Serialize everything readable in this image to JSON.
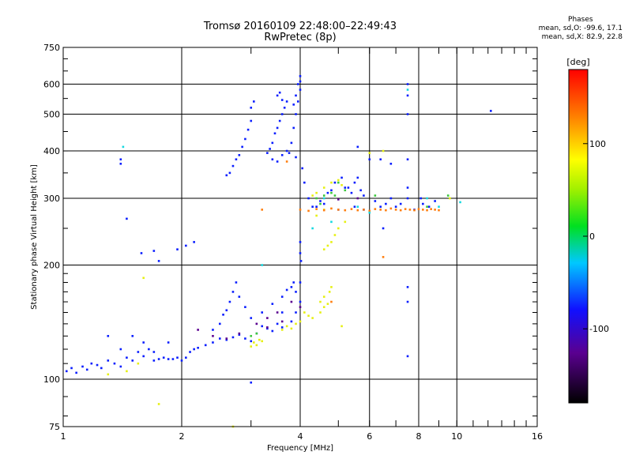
{
  "chart_data": {
    "type": "scatter",
    "title": "Tromsø 20160109 22:48:00–22:49:43",
    "subtitle": "RwPretec (8p)",
    "xlabel": "Frequency [MHz]",
    "ylabel": "Stationary phase Virtual Height [km]",
    "x_scale": "log",
    "y_scale": "log",
    "xlim": [
      1,
      16
    ],
    "ylim": [
      75,
      750
    ],
    "x_ticks": [
      1,
      2,
      4,
      6,
      8,
      10,
      16
    ],
    "y_ticks": [
      75,
      100,
      200,
      300,
      400,
      500,
      600,
      750
    ],
    "grid": true,
    "colorbar": {
      "label": "[deg]",
      "range": [
        -180,
        180
      ],
      "ticks": [
        100,
        0,
        -100
      ]
    },
    "stats": {
      "header": "Phases",
      "line1": "mean, sd,O:  -99.6, 17.1",
      "line2": "mean, sd,X:  82.9, 22.8"
    },
    "series": [
      {
        "color": "#0a1eff",
        "points": [
          [
            1.02,
            105
          ],
          [
            1.05,
            107
          ],
          [
            1.08,
            104
          ],
          [
            1.12,
            108
          ],
          [
            1.15,
            106
          ],
          [
            1.18,
            110
          ],
          [
            1.22,
            109
          ],
          [
            1.25,
            107
          ],
          [
            1.3,
            112
          ],
          [
            1.35,
            110
          ],
          [
            1.4,
            108
          ],
          [
            1.45,
            114
          ],
          [
            1.5,
            112
          ],
          [
            1.55,
            118
          ],
          [
            1.6,
            115
          ],
          [
            1.65,
            120
          ],
          [
            1.7,
            112
          ],
          [
            1.75,
            113
          ],
          [
            1.8,
            114
          ],
          [
            1.85,
            113
          ],
          [
            1.9,
            113
          ],
          [
            1.95,
            114
          ],
          [
            2.0,
            112
          ],
          [
            2.05,
            114
          ],
          [
            2.1,
            118
          ],
          [
            2.15,
            120
          ],
          [
            2.2,
            121
          ],
          [
            2.3,
            123
          ],
          [
            2.4,
            125
          ],
          [
            2.5,
            128
          ],
          [
            2.6,
            127
          ],
          [
            2.7,
            129
          ],
          [
            2.8,
            131
          ],
          [
            2.9,
            128
          ],
          [
            3.0,
            126
          ],
          [
            3.1,
            132
          ],
          [
            3.2,
            138
          ],
          [
            3.3,
            136
          ],
          [
            3.4,
            134
          ],
          [
            3.5,
            140
          ],
          [
            3.6,
            137
          ],
          [
            3.8,
            142
          ],
          [
            3.9,
            150
          ],
          [
            4.0,
            160
          ],
          [
            4.0,
            180
          ],
          [
            4.02,
            205
          ],
          [
            4.0,
            215
          ],
          [
            4.0,
            230
          ],
          [
            2.4,
            135
          ],
          [
            2.5,
            140
          ],
          [
            2.55,
            148
          ],
          [
            2.6,
            152
          ],
          [
            2.65,
            160
          ],
          [
            2.7,
            170
          ],
          [
            2.75,
            180
          ],
          [
            2.8,
            165
          ],
          [
            2.9,
            155
          ],
          [
            3.0,
            145
          ],
          [
            3.2,
            150
          ],
          [
            3.4,
            158
          ],
          [
            3.6,
            165
          ],
          [
            3.7,
            172
          ],
          [
            3.8,
            175
          ],
          [
            3.85,
            180
          ],
          [
            3.9,
            170
          ],
          [
            1.3,
            130
          ],
          [
            1.4,
            120
          ],
          [
            1.5,
            130
          ],
          [
            1.6,
            125
          ],
          [
            1.7,
            118
          ],
          [
            1.85,
            125
          ],
          [
            1.95,
            220
          ],
          [
            2.05,
            225
          ],
          [
            2.15,
            230
          ],
          [
            1.58,
            215
          ],
          [
            1.7,
            218
          ],
          [
            1.75,
            205
          ],
          [
            1.45,
            265
          ],
          [
            1.4,
            370
          ],
          [
            1.4,
            380
          ],
          [
            2.6,
            345
          ],
          [
            2.65,
            350
          ],
          [
            2.7,
            365
          ],
          [
            2.75,
            380
          ],
          [
            2.8,
            390
          ],
          [
            2.85,
            410
          ],
          [
            2.9,
            430
          ],
          [
            2.95,
            455
          ],
          [
            3.0,
            480
          ],
          [
            3.0,
            520
          ],
          [
            3.05,
            540
          ],
          [
            3.3,
            395
          ],
          [
            3.35,
            405
          ],
          [
            3.4,
            420
          ],
          [
            3.45,
            445
          ],
          [
            3.5,
            460
          ],
          [
            3.55,
            480
          ],
          [
            3.6,
            500
          ],
          [
            3.65,
            520
          ],
          [
            3.7,
            540
          ],
          [
            3.5,
            560
          ],
          [
            3.55,
            570
          ],
          [
            3.6,
            545
          ],
          [
            3.7,
            400
          ],
          [
            3.8,
            420
          ],
          [
            3.85,
            460
          ],
          [
            3.9,
            500
          ],
          [
            3.95,
            540
          ],
          [
            4.0,
            580
          ],
          [
            4.0,
            610
          ],
          [
            4.0,
            630
          ],
          [
            3.95,
            600
          ],
          [
            3.9,
            560
          ],
          [
            3.85,
            530
          ],
          [
            3.4,
            380
          ],
          [
            3.5,
            375
          ],
          [
            3.6,
            390
          ],
          [
            3.75,
            395
          ],
          [
            3.9,
            385
          ],
          [
            4.05,
            360
          ],
          [
            4.1,
            330
          ],
          [
            4.2,
            300
          ],
          [
            4.3,
            285
          ],
          [
            4.5,
            295
          ],
          [
            4.7,
            310
          ],
          [
            4.9,
            330
          ],
          [
            5.1,
            340
          ],
          [
            5.3,
            320
          ],
          [
            5.5,
            330
          ],
          [
            5.6,
            340
          ],
          [
            5.7,
            315
          ],
          [
            5.8,
            305
          ],
          [
            5.4,
            310
          ],
          [
            5.2,
            320
          ],
          [
            4.8,
            315
          ],
          [
            4.6,
            290
          ],
          [
            4.4,
            285
          ],
          [
            5.0,
            280
          ],
          [
            5.5,
            285
          ],
          [
            6.2,
            295
          ],
          [
            6.4,
            285
          ],
          [
            6.6,
            290
          ],
          [
            6.8,
            300
          ],
          [
            7.0,
            285
          ],
          [
            7.2,
            290
          ],
          [
            7.5,
            300
          ],
          [
            7.8,
            280
          ],
          [
            8.2,
            290
          ],
          [
            8.5,
            285
          ],
          [
            8.8,
            295
          ],
          [
            7.5,
            600
          ],
          [
            7.5,
            560
          ],
          [
            7.5,
            500
          ],
          [
            7.5,
            380
          ],
          [
            7.5,
            320
          ],
          [
            7.5,
            175
          ],
          [
            7.5,
            160
          ],
          [
            7.5,
            115
          ],
          [
            5.6,
            410
          ],
          [
            6.0,
            380
          ],
          [
            6.4,
            380
          ],
          [
            6.8,
            370
          ],
          [
            8.1,
            300
          ],
          [
            6.5,
            250
          ],
          [
            5.8,
            280
          ],
          [
            12.2,
            510
          ],
          [
            3.0,
            98
          ],
          [
            3.6,
            150
          ]
        ]
      },
      {
        "color": "#e6f013",
        "points": [
          [
            1.45,
            105
          ],
          [
            1.3,
            103
          ],
          [
            1.55,
            110
          ],
          [
            1.6,
            185
          ],
          [
            1.75,
            86
          ],
          [
            2.7,
            75
          ],
          [
            3.0,
            122
          ],
          [
            3.05,
            125
          ],
          [
            3.1,
            123
          ],
          [
            3.15,
            127
          ],
          [
            3.2,
            126
          ],
          [
            3.6,
            135
          ],
          [
            3.7,
            138
          ],
          [
            3.8,
            136
          ],
          [
            3.9,
            140
          ],
          [
            4.0,
            142
          ],
          [
            4.1,
            150
          ],
          [
            4.2,
            147
          ],
          [
            4.3,
            145
          ],
          [
            4.5,
            150
          ],
          [
            4.6,
            155
          ],
          [
            4.7,
            158
          ],
          [
            4.75,
            170
          ],
          [
            4.8,
            175
          ],
          [
            4.5,
            160
          ],
          [
            4.6,
            165
          ],
          [
            4.6,
            220
          ],
          [
            4.7,
            225
          ],
          [
            4.8,
            230
          ],
          [
            4.9,
            240
          ],
          [
            5.0,
            250
          ],
          [
            5.2,
            260
          ],
          [
            4.3,
            305
          ],
          [
            4.4,
            310
          ],
          [
            4.6,
            320
          ],
          [
            4.8,
            330
          ],
          [
            5.0,
            335
          ],
          [
            5.1,
            325
          ],
          [
            4.4,
            270
          ],
          [
            4.6,
            280
          ],
          [
            5.1,
            138
          ],
          [
            6.0,
            395
          ],
          [
            6.5,
            400
          ],
          [
            9.6,
            300
          ]
        ]
      },
      {
        "color": "#ff7f10",
        "points": [
          [
            4.0,
            280
          ],
          [
            4.2,
            278
          ],
          [
            4.4,
            281
          ],
          [
            4.6,
            279
          ],
          [
            4.8,
            282
          ],
          [
            5.0,
            280
          ],
          [
            5.2,
            279
          ],
          [
            5.4,
            281
          ],
          [
            5.6,
            279
          ],
          [
            5.8,
            280
          ],
          [
            6.0,
            278
          ],
          [
            6.2,
            281
          ],
          [
            6.4,
            280
          ],
          [
            6.6,
            279
          ],
          [
            6.8,
            282
          ],
          [
            7.0,
            280
          ],
          [
            7.2,
            279
          ],
          [
            7.4,
            281
          ],
          [
            7.6,
            280
          ],
          [
            7.8,
            279
          ],
          [
            8.0,
            281
          ],
          [
            8.2,
            280
          ],
          [
            8.4,
            279
          ],
          [
            8.6,
            281
          ],
          [
            8.8,
            280
          ],
          [
            9.0,
            279
          ],
          [
            3.2,
            280
          ],
          [
            6.5,
            210
          ],
          [
            4.8,
            160
          ],
          [
            3.7,
            375
          ]
        ]
      },
      {
        "color": "#3cc83c",
        "points": [
          [
            4.4,
            300
          ],
          [
            4.6,
            305
          ],
          [
            4.8,
            310
          ],
          [
            5.0,
            330
          ],
          [
            5.2,
            315
          ],
          [
            4.9,
            305
          ],
          [
            6.2,
            305
          ],
          [
            8.4,
            285
          ],
          [
            9.5,
            305
          ],
          [
            3.0,
            130
          ],
          [
            3.1,
            132
          ],
          [
            4.5,
            290
          ]
        ]
      },
      {
        "color": "#17d9e0",
        "points": [
          [
            1.42,
            410
          ],
          [
            3.2,
            200
          ],
          [
            4.3,
            250
          ],
          [
            8.4,
            300
          ],
          [
            9.0,
            285
          ],
          [
            4.6,
            300
          ],
          [
            5.6,
            285
          ],
          [
            6.0,
            275
          ],
          [
            10.2,
            293
          ],
          [
            7.5,
            580
          ],
          [
            4.8,
            260
          ]
        ]
      },
      {
        "color": "#5a0090",
        "points": [
          [
            2.2,
            135
          ],
          [
            2.4,
            130
          ],
          [
            2.6,
            128
          ],
          [
            2.8,
            132
          ],
          [
            3.1,
            140
          ],
          [
            3.3,
            145
          ],
          [
            3.5,
            150
          ],
          [
            3.8,
            160
          ],
          [
            4.0,
            155
          ],
          [
            3.3,
            137
          ],
          [
            3.6,
            142
          ],
          [
            5.0,
            298
          ],
          [
            5.6,
            300
          ]
        ]
      }
    ]
  }
}
